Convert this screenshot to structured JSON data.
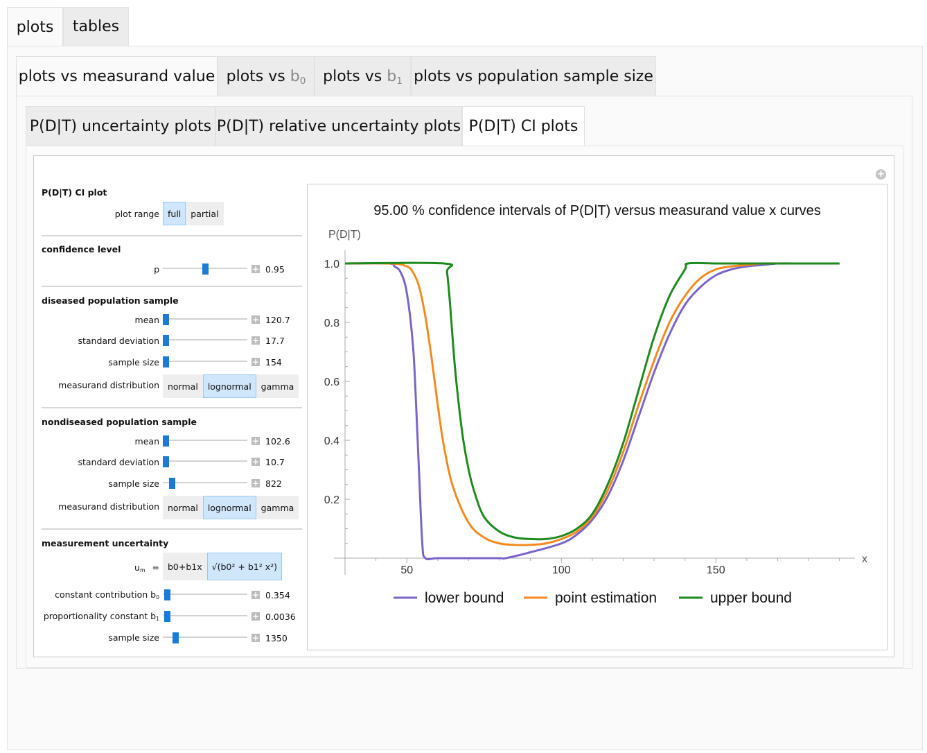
{
  "tabs_level1": [
    "plots",
    "tables"
  ],
  "tabs_level2": {
    "measurand": "plots vs measurand value",
    "b0_prefix": "plots vs ",
    "b0_letter": "b",
    "b0_sub": "0",
    "b1_prefix": "plots vs ",
    "b1_letter": "b",
    "b1_sub": "1",
    "sample_size": "plots vs population sample size"
  },
  "tabs_level3": [
    "P(D|T) uncertainty plots",
    "P(D|T) relative uncertainty plots",
    "P(D|T) CI plots"
  ],
  "controls": {
    "ci_plot": {
      "title": "P(D|T) CI plot",
      "range_label": "plot range",
      "options": [
        "full",
        "partial"
      ],
      "selected": "full"
    },
    "confidence": {
      "title": "confidence level",
      "p_label": "p",
      "p_value": "0.95",
      "p_pos": 0.5
    },
    "diseased": {
      "title": "diseased population sample",
      "mean_label": "mean",
      "mean_value": "120.7",
      "mean_pos": 0.0,
      "sd_label": "standard deviation",
      "sd_value": "17.7",
      "sd_pos": 0.0,
      "size_label": "sample size",
      "size_value": "154",
      "size_pos": 0.0,
      "dist_label": "measurand distribution",
      "dist_options": [
        "normal",
        "lognormal",
        "gamma"
      ],
      "dist_selected": "lognormal"
    },
    "nondiseased": {
      "title": "nondiseased population sample",
      "mean_label": "mean",
      "mean_value": "102.6",
      "mean_pos": 0.0,
      "sd_label": "standard deviation",
      "sd_value": "10.7",
      "sd_pos": 0.0,
      "size_label": "sample size",
      "size_value": "822",
      "size_pos": 0.08,
      "dist_label": "measurand distribution",
      "dist_options": [
        "normal",
        "lognormal",
        "gamma"
      ],
      "dist_selected": "lognormal"
    },
    "uncertainty": {
      "title": "measurement uncertainty",
      "um_label": "u",
      "um_sub": "m",
      "um_eq": "=",
      "um_linear": "b0+b1x",
      "um_sqrt": "√(b0² + b1² x²)",
      "um_selected": "sqrt",
      "b0_label": "constant contribution b",
      "b0_label_sub": "0",
      "b0_value": "0.354",
      "b0_pos": 0.02,
      "b1_label": "proportionality constant b",
      "b1_label_sub": "1",
      "b1_value": "0.0036",
      "b1_pos": 0.02,
      "size_label": "sample size",
      "size_value": "1350",
      "size_pos": 0.12
    }
  },
  "chart_data": {
    "type": "line",
    "title": "95.00 % confidence intervals of P(D|T) versus measurand value x curves",
    "xlabel": "x",
    "ylabel": "P(D|T)",
    "xlim": [
      30,
      195
    ],
    "ylim": [
      0,
      1.0
    ],
    "x_ticks": [
      50,
      100,
      150
    ],
    "y_ticks": [
      0.2,
      0.4,
      0.6,
      0.8,
      1.0
    ],
    "y_tick_labels": [
      "0.2",
      "0.4",
      "0.6",
      "0.8",
      "1.0"
    ],
    "grid": false,
    "legend": "bottom",
    "series": [
      {
        "name": "lower bound",
        "color": "#7b64c9",
        "x": [
          30,
          44,
          46,
          48,
          50,
          52,
          53,
          54,
          55,
          56,
          60,
          70,
          80,
          82,
          90,
          100,
          105,
          110,
          115,
          120,
          125,
          130,
          135,
          140,
          145,
          150,
          155,
          160,
          165,
          170,
          175,
          180,
          190
        ],
        "y": [
          1.0,
          1.0,
          0.99,
          0.97,
          0.9,
          0.72,
          0.52,
          0.28,
          0.05,
          0.0,
          0.0,
          0.0,
          0.0,
          0.0,
          0.02,
          0.05,
          0.08,
          0.13,
          0.21,
          0.33,
          0.48,
          0.63,
          0.76,
          0.86,
          0.92,
          0.96,
          0.98,
          0.99,
          0.995,
          1.0,
          1.0,
          1.0,
          1.0
        ]
      },
      {
        "name": "point estimation",
        "color": "#f28a1e",
        "x": [
          30,
          45,
          50,
          52,
          54,
          56,
          58,
          60,
          62,
          65,
          70,
          75,
          80,
          85,
          90,
          95,
          100,
          105,
          110,
          115,
          120,
          125,
          130,
          135,
          140,
          145,
          150,
          155,
          160,
          165,
          170,
          175,
          180,
          190
        ],
        "y": [
          1.0,
          1.0,
          0.99,
          0.97,
          0.92,
          0.82,
          0.68,
          0.52,
          0.38,
          0.24,
          0.12,
          0.07,
          0.05,
          0.045,
          0.045,
          0.05,
          0.065,
          0.09,
          0.14,
          0.23,
          0.36,
          0.52,
          0.67,
          0.8,
          0.89,
          0.95,
          0.98,
          0.99,
          0.995,
          1.0,
          1.0,
          1.0,
          1.0,
          1.0
        ]
      },
      {
        "name": "upper bound",
        "color": "#1d8a1d",
        "x": [
          30,
          62,
          63,
          64,
          65,
          66,
          68,
          70,
          72,
          75,
          80,
          85,
          90,
          95,
          100,
          105,
          110,
          115,
          120,
          125,
          130,
          135,
          140,
          141,
          150,
          160,
          170,
          180,
          190
        ],
        "y": [
          1.0,
          1.0,
          0.97,
          0.86,
          0.72,
          0.6,
          0.42,
          0.3,
          0.22,
          0.14,
          0.09,
          0.07,
          0.065,
          0.065,
          0.075,
          0.1,
          0.15,
          0.25,
          0.39,
          0.57,
          0.75,
          0.89,
          0.98,
          1.0,
          1.0,
          1.0,
          1.0,
          1.0,
          1.0
        ]
      }
    ]
  }
}
